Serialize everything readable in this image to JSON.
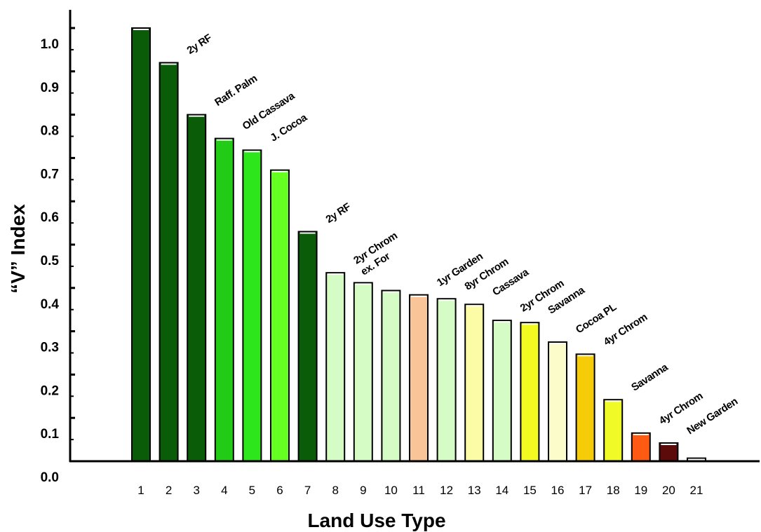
{
  "chart_data": {
    "type": "bar",
    "xlabel": "Land Use Type",
    "ylabel": "“V” Index",
    "ylim": [
      0,
      1.05
    ],
    "grid": false,
    "yticks": [
      "0.0",
      "0.1",
      "0.2",
      "0.3",
      "0.4",
      "0.5",
      "0.6",
      "0.7",
      "0.8",
      "0.9",
      "1.0"
    ],
    "categories": [
      "1",
      "2",
      "3",
      "4",
      "5",
      "6",
      "7",
      "8",
      "9",
      "10",
      "11",
      "12",
      "13",
      "14",
      "15",
      "16",
      "17",
      "18",
      "19",
      "20",
      "21"
    ],
    "values": [
      1.0,
      0.92,
      0.8,
      0.745,
      0.718,
      0.672,
      0.53,
      0.435,
      0.412,
      0.394,
      0.384,
      0.375,
      0.362,
      0.325,
      0.32,
      0.275,
      0.247,
      0.142,
      0.065,
      0.042,
      0.007
    ],
    "colors": [
      "#0a5c08",
      "#0a5c08",
      "#0a5c08",
      "#22cc16",
      "#2ee61c",
      "#66ff22",
      "#0a5c08",
      "#d6fcc6",
      "#d6fcc6",
      "#d6fcc6",
      "#f8c498",
      "#d6fcc6",
      "#fcfca6",
      "#d6fcc6",
      "#f2fa22",
      "#fcfcca",
      "#f6cc08",
      "#f0fa26",
      "#ff5a14",
      "#5c0a0a",
      "#ffffff"
    ],
    "labels": [
      "",
      "2y RF",
      "Raff. Palm",
      "Old Cassava",
      "J. Cocoa",
      "",
      "2y RF",
      "2yr  Chrom\nex. For",
      "",
      "",
      "1yr Garden",
      "8yr  Chrom",
      "Cassava",
      "2yr  Chrom",
      "Savanna",
      "Cocoa PL",
      "4yr  Chrom",
      "Savanna",
      "4yr  Chrom",
      "New Garden",
      ""
    ]
  }
}
